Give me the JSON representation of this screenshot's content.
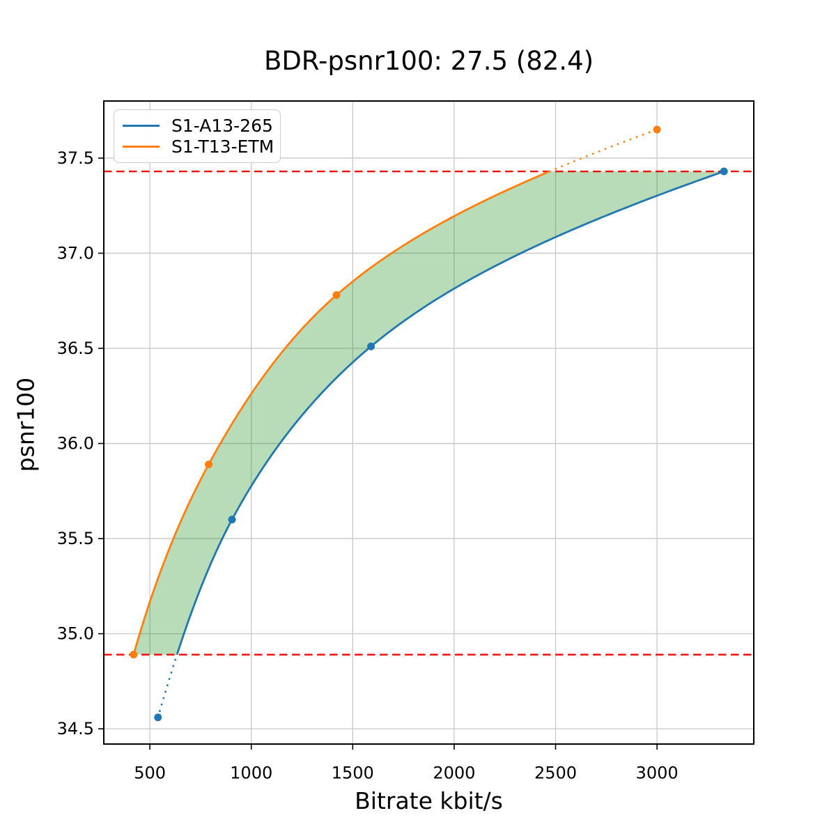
{
  "title": "BDR-psnr100: 27.5 (82.4)",
  "chart_data": {
    "type": "line",
    "title": "BDR-psnr100: 27.5 (82.4)",
    "xlabel": "Bitrate kbit/s",
    "ylabel": "psnr100",
    "xlim": [
      273,
      3477
    ],
    "ylim": [
      34.42,
      37.8
    ],
    "xticks": [
      500,
      1000,
      1500,
      2000,
      2500,
      3000
    ],
    "yticks": [
      34.5,
      35.0,
      35.5,
      36.0,
      36.5,
      37.0,
      37.5
    ],
    "grid": true,
    "grid_color": "#c8c8c8",
    "legend_position": "upper left",
    "series": [
      {
        "name": "S1-A13-265",
        "color": "#1f77b4",
        "points": [
          [
            540,
            34.56
          ],
          [
            905,
            35.6
          ],
          [
            1590,
            36.51
          ],
          [
            3330,
            37.43
          ]
        ]
      },
      {
        "name": "S1-T13-ETM",
        "color": "#ff7f0e",
        "points": [
          [
            420,
            34.89
          ],
          [
            790,
            35.89
          ],
          [
            1420,
            36.78
          ],
          [
            3000,
            37.65
          ]
        ]
      }
    ],
    "overlap_lines": {
      "lower": 34.89,
      "upper": 37.43,
      "color": "#ff0000",
      "style": "dashed"
    },
    "shaded_region": {
      "color": "#008000",
      "opacity": 0.28
    }
  }
}
